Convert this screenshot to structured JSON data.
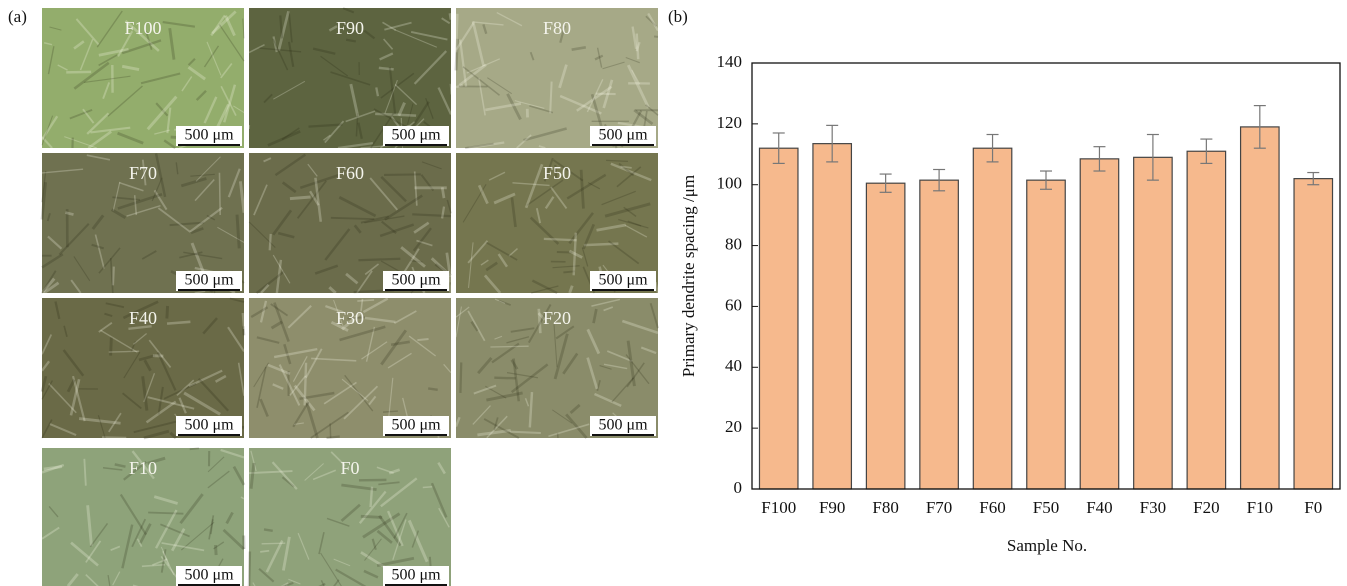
{
  "panel_a_label": "(a)",
  "micrographs": [
    {
      "label": "F100",
      "scale": "500 μm"
    },
    {
      "label": "F90",
      "scale": "500 μm"
    },
    {
      "label": "F80",
      "scale": "500 μm"
    },
    {
      "label": "F70",
      "scale": "500 μm"
    },
    {
      "label": "F60",
      "scale": "500 μm"
    },
    {
      "label": "F50",
      "scale": "500 μm"
    },
    {
      "label": "F40",
      "scale": "500 μm"
    },
    {
      "label": "F30",
      "scale": "500 μm"
    },
    {
      "label": "F20",
      "scale": "500 μm"
    },
    {
      "label": "F10",
      "scale": "500 μm"
    },
    {
      "label": "F0",
      "scale": "500 μm"
    }
  ],
  "chart_data": {
    "type": "bar",
    "panel_label": "(b)",
    "x_label": "Sample No.",
    "y_label": "Primary dendrite spacing /μm",
    "categories": [
      "F100",
      "F90",
      "F80",
      "F70",
      "F60",
      "F50",
      "F40",
      "F30",
      "F20",
      "F10",
      "F0"
    ],
    "values": [
      112,
      113.5,
      100.5,
      101.5,
      112,
      101.5,
      108.5,
      109,
      111,
      119,
      102
    ],
    "errors": [
      5,
      6,
      3,
      3.5,
      4.5,
      3,
      4,
      7.5,
      4,
      7,
      2
    ],
    "color": "#f6b98d",
    "ylim": [
      0,
      140
    ],
    "yticks": [
      0,
      20,
      40,
      60,
      80,
      100,
      120,
      140
    ]
  }
}
